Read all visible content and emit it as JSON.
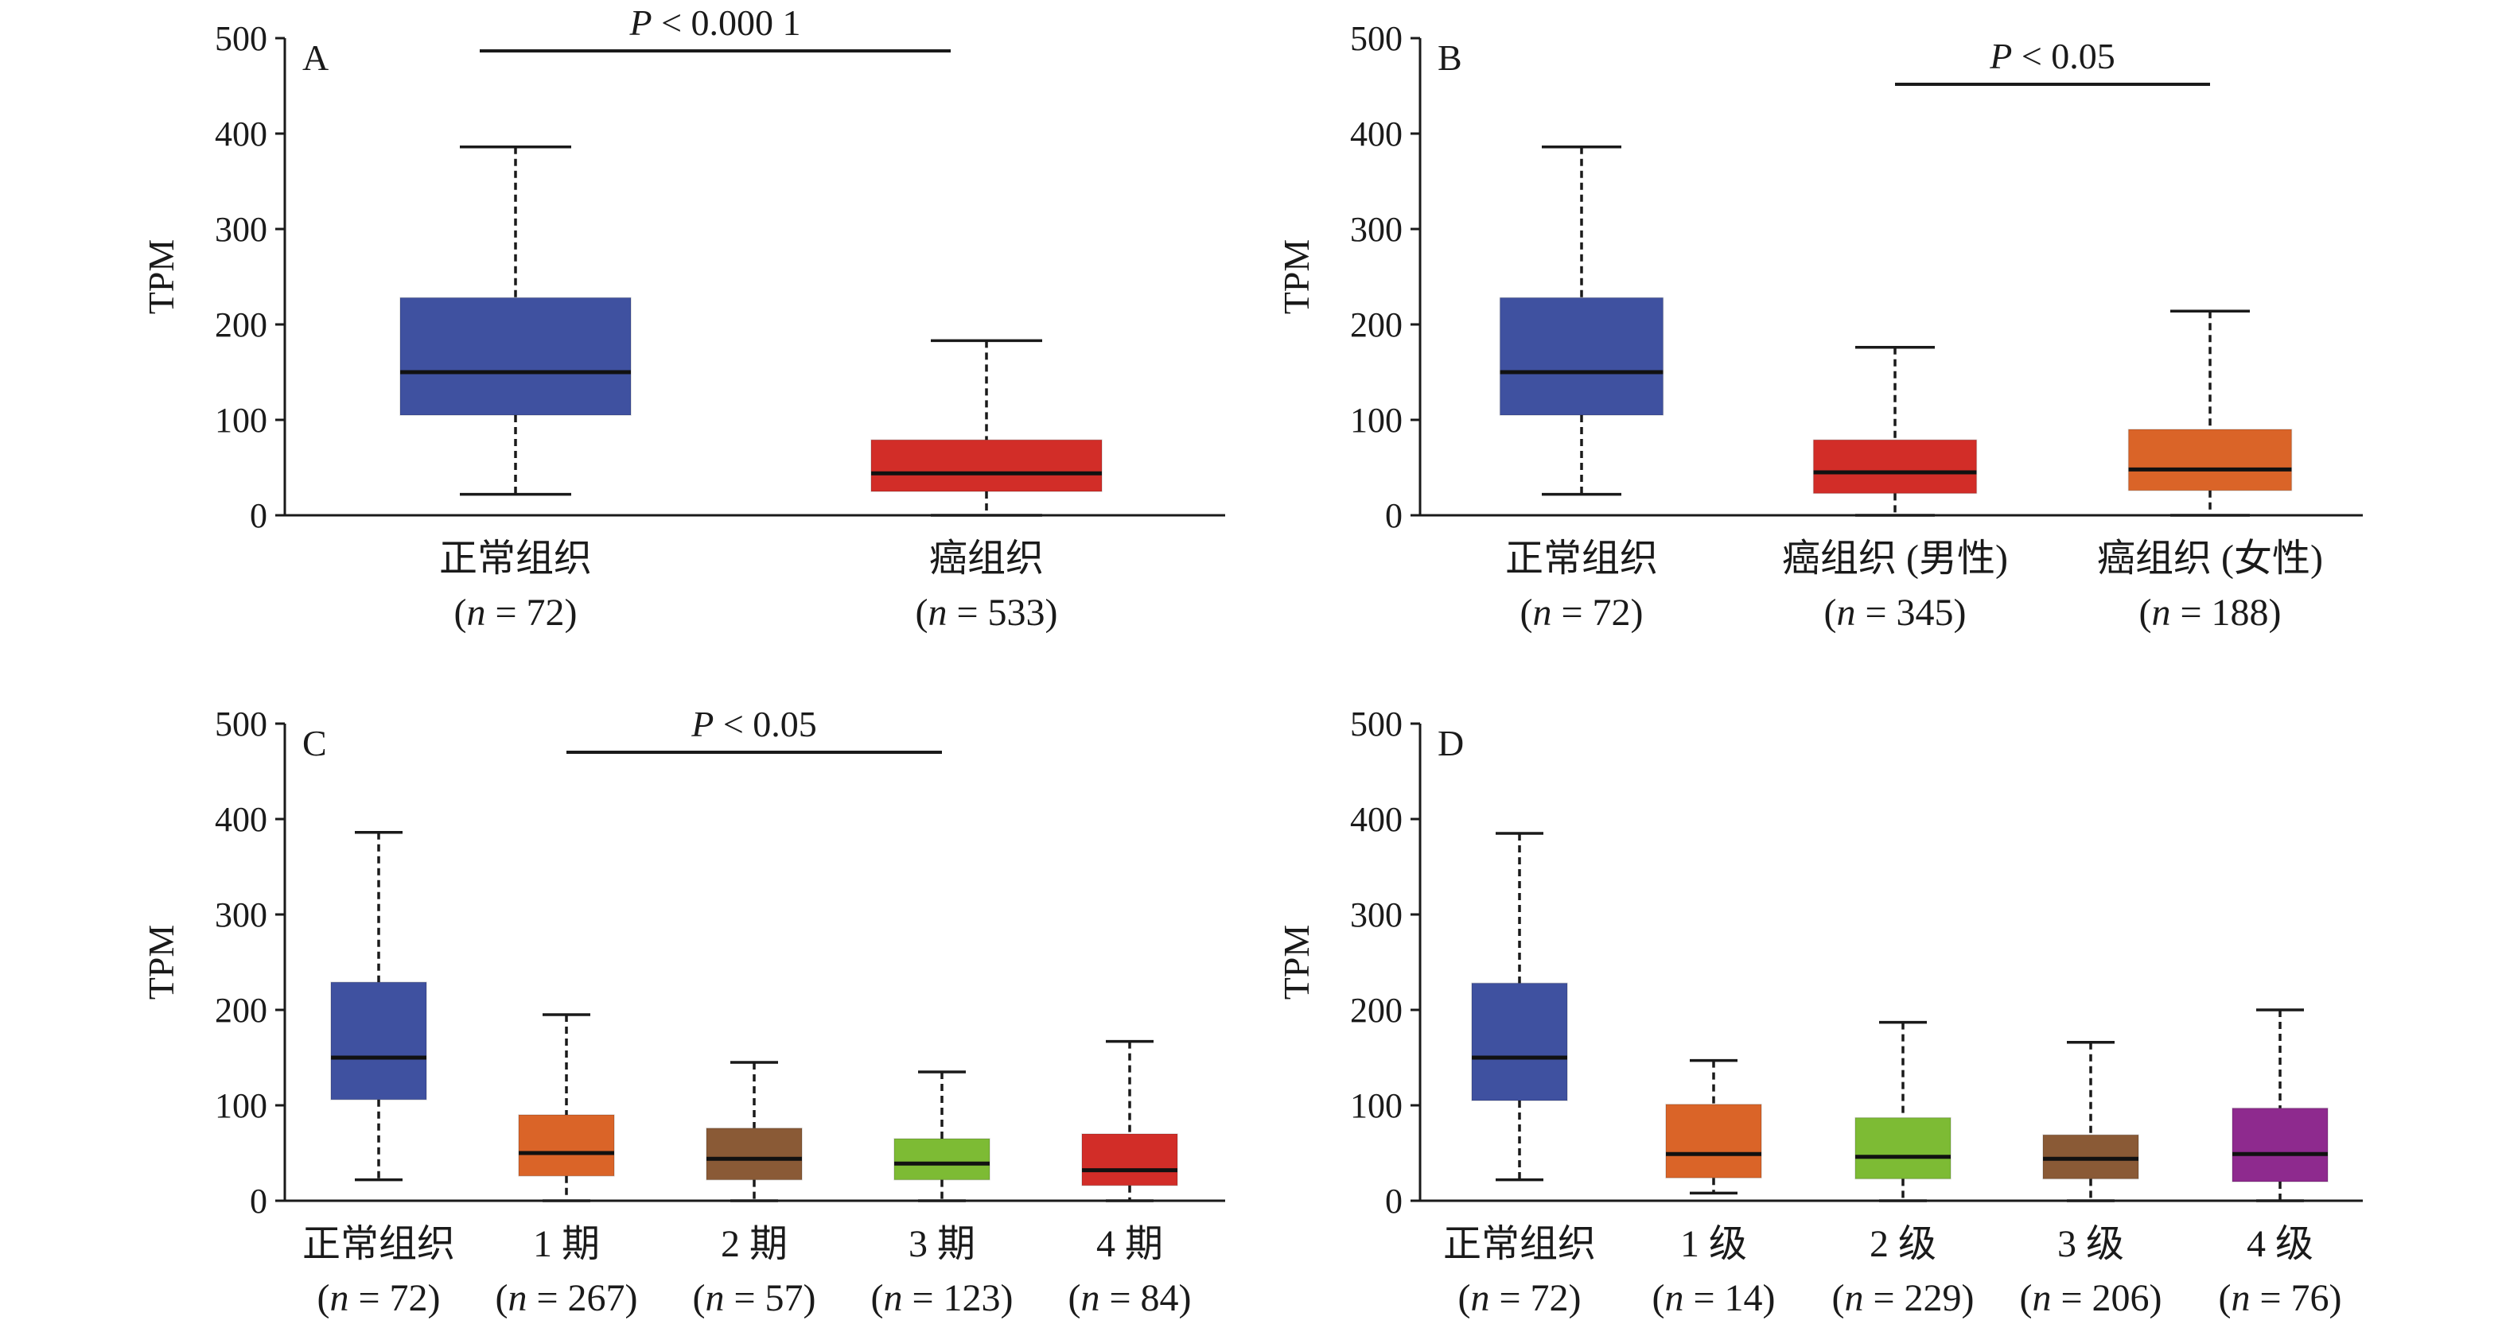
{
  "chart_data": [
    {
      "type": "box",
      "panel": "A",
      "ylabel": "TPM",
      "ylim": [
        0,
        500
      ],
      "yticks": [
        "0",
        "100",
        "200",
        "300",
        "400",
        "500"
      ],
      "significance": {
        "text": "P < 0.000 1",
        "from": 0,
        "to": 1
      },
      "categories": [
        {
          "label": "正常组织",
          "n": "(n = 72)",
          "color": "#3F51A0",
          "min": 22,
          "q1": 105,
          "median": 150,
          "q3": 228,
          "max": 386
        },
        {
          "label": "癌组织",
          "n": "(n = 533)",
          "color": "#D22D28",
          "min": 0,
          "q1": 25,
          "median": 44,
          "q3": 79,
          "max": 183
        }
      ]
    },
    {
      "type": "box",
      "panel": "B",
      "ylabel": "TPM",
      "ylim": [
        0,
        500
      ],
      "yticks": [
        "0",
        "100",
        "200",
        "300",
        "400",
        "500"
      ],
      "significance": {
        "text": "P < 0.05",
        "from": 1,
        "to": 2
      },
      "categories": [
        {
          "label": "正常组织",
          "n": "(n = 72)",
          "color": "#3F51A0",
          "min": 22,
          "q1": 105,
          "median": 150,
          "q3": 228,
          "max": 386
        },
        {
          "label": "癌组织 (男性)",
          "n": "(n = 345)",
          "color": "#D22D28",
          "min": 0,
          "q1": 23,
          "median": 45,
          "q3": 79,
          "max": 176
        },
        {
          "label": "癌组织 (女性)",
          "n": "(n = 188)",
          "color": "#DA6428",
          "min": 0,
          "q1": 26,
          "median": 48,
          "q3": 90,
          "max": 214
        }
      ]
    },
    {
      "type": "box",
      "panel": "C",
      "ylabel": "TPM",
      "ylim": [
        0,
        500
      ],
      "yticks": [
        "0",
        "100",
        "200",
        "300",
        "400",
        "500"
      ],
      "significance": {
        "text": "P < 0.05",
        "from": 1,
        "to": 3
      },
      "categories": [
        {
          "label": "正常组织",
          "n": "(n = 72)",
          "color": "#3F51A0",
          "min": 22,
          "q1": 106,
          "median": 150,
          "q3": 229,
          "max": 386
        },
        {
          "label": "1 期",
          "n": "(n = 267)",
          "color": "#DA6428",
          "min": 0,
          "q1": 26,
          "median": 50,
          "q3": 90,
          "max": 195
        },
        {
          "label": "2 期",
          "n": "(n = 57)",
          "color": "#8A5A36",
          "min": 0,
          "q1": 22,
          "median": 44,
          "q3": 76,
          "max": 145
        },
        {
          "label": "3 期",
          "n": "(n = 123)",
          "color": "#7DBB34",
          "min": 0,
          "q1": 22,
          "median": 39,
          "q3": 65,
          "max": 135
        },
        {
          "label": "4 期",
          "n": "(n = 84)",
          "color": "#D22D28",
          "min": 0,
          "q1": 16,
          "median": 32,
          "q3": 70,
          "max": 167
        }
      ]
    },
    {
      "type": "box",
      "panel": "D",
      "ylabel": "TPM",
      "ylim": [
        0,
        500
      ],
      "yticks": [
        "0",
        "100",
        "200",
        "300",
        "400",
        "500"
      ],
      "significance": null,
      "categories": [
        {
          "label": "正常组织",
          "n": "(n = 72)",
          "color": "#3F51A0",
          "min": 22,
          "q1": 105,
          "median": 150,
          "q3": 228,
          "max": 385
        },
        {
          "label": "1 级",
          "n": "(n = 14)",
          "color": "#DA6428",
          "min": 8,
          "q1": 24,
          "median": 49,
          "q3": 101,
          "max": 147
        },
        {
          "label": "2 级",
          "n": "(n = 229)",
          "color": "#7DBB34",
          "min": 0,
          "q1": 23,
          "median": 46,
          "q3": 87,
          "max": 187
        },
        {
          "label": "3 级",
          "n": "(n = 206)",
          "color": "#8A5A36",
          "min": 0,
          "q1": 23,
          "median": 44,
          "q3": 69,
          "max": 166
        },
        {
          "label": "4 级",
          "n": "(n = 76)",
          "color": "#8E2A8E",
          "min": 0,
          "q1": 20,
          "median": 49,
          "q3": 97,
          "max": 200
        }
      ]
    }
  ]
}
